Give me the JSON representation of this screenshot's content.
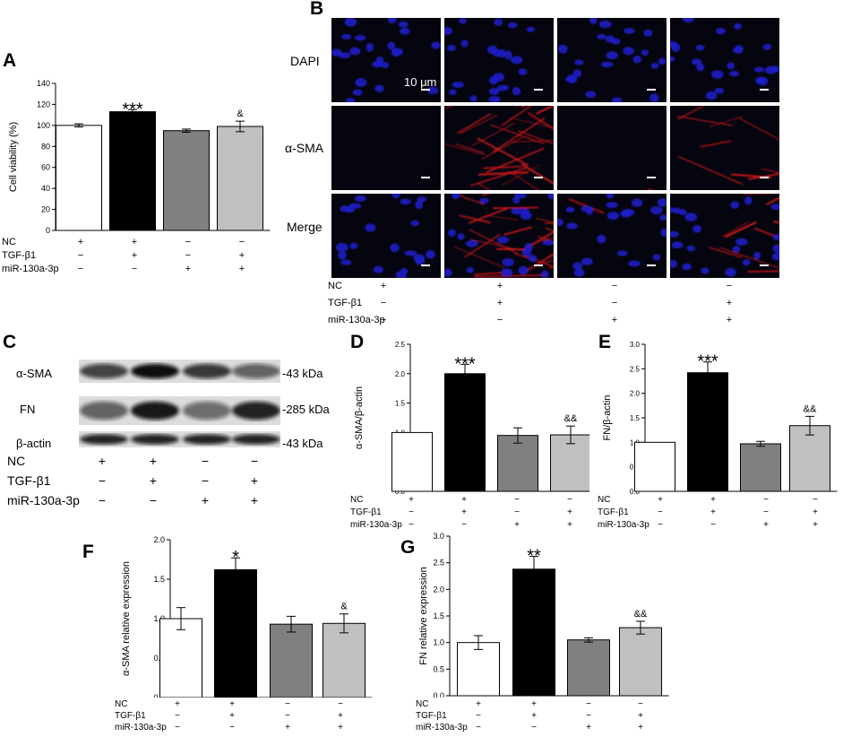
{
  "panels": {
    "A": "A",
    "B": "B",
    "C": "C",
    "D": "D",
    "E": "E",
    "F": "F",
    "G": "G"
  },
  "treatments": {
    "labels": [
      "NC",
      "TGF-β1",
      "miR-130a-3p"
    ],
    "rows": [
      [
        "+",
        "+",
        "−",
        "−"
      ],
      [
        "−",
        "+",
        "−",
        "+"
      ],
      [
        "−",
        "−",
        "+",
        "+"
      ]
    ]
  },
  "colors": {
    "bars": [
      "#ffffff",
      "#000000",
      "#808080",
      "#c0c0c0"
    ],
    "nucleus": "#1f1fd0",
    "actin": "#e01818",
    "micro_bg": "#050510"
  },
  "microscopy": {
    "rows": [
      "DAPI",
      "α-SMA",
      "Merge"
    ],
    "scale_bar_label": "10 μm"
  },
  "western": {
    "bands": [
      {
        "name": "α-SMA",
        "size": "-43 kDa"
      },
      {
        "name": "FN",
        "size": "-285 kDa"
      },
      {
        "name": "β-actin",
        "size": "-43 kDa"
      }
    ]
  },
  "chart_data": [
    {
      "panel": "A",
      "type": "bar",
      "ylabel": "Cell viability (%)",
      "ylim": [
        0,
        140
      ],
      "yticks": [
        0,
        20,
        40,
        60,
        80,
        100,
        120,
        140
      ],
      "values": [
        100,
        113,
        95,
        99
      ],
      "errors": [
        1.5,
        2,
        1.5,
        5
      ],
      "annotations": [
        "",
        "***",
        "",
        "&"
      ]
    },
    {
      "panel": "D",
      "type": "bar",
      "ylabel": "α-SMA/β-actin",
      "ylim": [
        0,
        2.5
      ],
      "yticks": [
        0.0,
        0.5,
        1.0,
        1.5,
        2.0,
        2.5
      ],
      "values": [
        1.0,
        2.0,
        0.95,
        0.96
      ],
      "errors": [
        0,
        0.16,
        0.13,
        0.15
      ],
      "annotations": [
        "",
        "***",
        "",
        "&&"
      ]
    },
    {
      "panel": "E",
      "type": "bar",
      "ylabel": "FN/β-actin",
      "ylim": [
        0,
        3.0
      ],
      "yticks": [
        0.0,
        0.5,
        1.0,
        1.5,
        2.0,
        2.5,
        3.0
      ],
      "values": [
        1.0,
        2.42,
        0.97,
        1.34
      ],
      "errors": [
        0,
        0.22,
        0.05,
        0.19
      ],
      "annotations": [
        "",
        "***",
        "",
        "&&"
      ]
    },
    {
      "panel": "F",
      "type": "bar",
      "ylabel": "α-SMA relative expression",
      "ylim": [
        0,
        2.0
      ],
      "yticks": [
        0.0,
        0.5,
        1.0,
        1.5,
        2.0
      ],
      "values": [
        1.0,
        1.62,
        0.93,
        0.94
      ],
      "errors": [
        0.14,
        0.15,
        0.1,
        0.12
      ],
      "annotations": [
        "",
        "*",
        "",
        "&"
      ]
    },
    {
      "panel": "G",
      "type": "bar",
      "ylabel": "FN relative expression",
      "ylim": [
        0,
        3.0
      ],
      "yticks": [
        0.0,
        0.5,
        1.0,
        1.5,
        2.0,
        2.5,
        3.0
      ],
      "values": [
        1.0,
        2.38,
        1.05,
        1.28
      ],
      "errors": [
        0.13,
        0.24,
        0.04,
        0.12
      ],
      "annotations": [
        "",
        "**",
        "",
        "&&"
      ]
    }
  ]
}
